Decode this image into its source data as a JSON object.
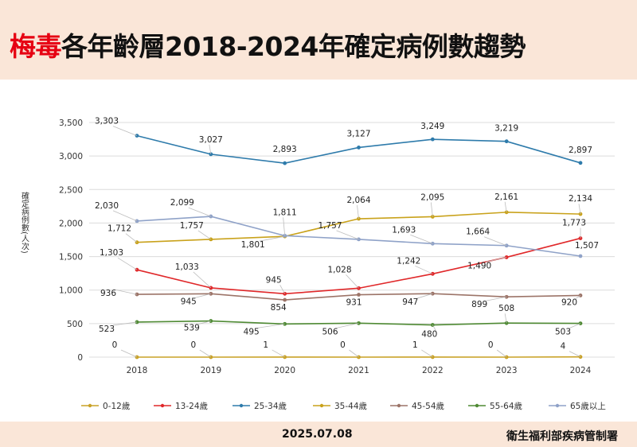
{
  "header": {
    "title_highlight": "梅毒",
    "title_rest": "各年齡層2018-2024年確定病例數趨勢"
  },
  "footer": {
    "date": "2025.07.08",
    "org": "衛生福利部疾病管制署"
  },
  "chart_data": {
    "type": "line",
    "title": "",
    "ylabel": "確定病例數(人次)",
    "xlabel": "",
    "x": [
      "2018",
      "2019",
      "2020",
      "2021",
      "2022",
      "2023",
      "2024"
    ],
    "ylim": [
      0,
      3500
    ],
    "yticks": [
      0,
      500,
      1000,
      1500,
      2000,
      2500,
      3000,
      3500
    ],
    "ytick_labels": [
      "0",
      "500",
      "1,000",
      "1,500",
      "2,000",
      "2,500",
      "3,000",
      "3,500"
    ],
    "grid": "horizontal",
    "legend_position": "bottom",
    "series": [
      {
        "name": "0-12歲",
        "color": "#c9a227",
        "values": [
          0,
          0,
          1,
          0,
          1,
          0,
          4
        ],
        "labels": [
          "0",
          "0",
          "1",
          "0",
          "1",
          "0",
          "4"
        ]
      },
      {
        "name": "13-24歲",
        "color": "#e0282a",
        "values": [
          1303,
          1033,
          945,
          1028,
          1242,
          1490,
          1773
        ],
        "labels": [
          "1,303",
          "1,033",
          "945",
          "1,028",
          "1,242",
          "1,490",
          "1,773"
        ]
      },
      {
        "name": "25-34歲",
        "color": "#2e7bab",
        "values": [
          3303,
          3027,
          2893,
          3127,
          3249,
          3219,
          2897
        ],
        "labels": [
          "3,303",
          "3,027",
          "2,893",
          "3,127",
          "3,249",
          "3,219",
          "2,897"
        ]
      },
      {
        "name": "35-44歲",
        "color": "#c9a21b",
        "values": [
          1712,
          1757,
          1801,
          2064,
          2095,
          2161,
          2134
        ],
        "labels": [
          "1,712",
          "1,757",
          "1,801",
          "2,064",
          "2,095",
          "2,161",
          "2,134"
        ]
      },
      {
        "name": "45-54歲",
        "color": "#9c7468",
        "values": [
          936,
          945,
          854,
          931,
          947,
          899,
          920
        ],
        "labels": [
          "936",
          "945",
          "854",
          "931",
          "947",
          "899",
          "920"
        ]
      },
      {
        "name": "55-64歲",
        "color": "#4f8a34",
        "values": [
          523,
          539,
          495,
          506,
          480,
          508,
          503
        ],
        "labels": [
          "523",
          "539",
          "495",
          "506",
          "480",
          "508",
          "503"
        ]
      },
      {
        "name": "65歲以上",
        "color": "#8fa2c8",
        "values": [
          2030,
          2099,
          1811,
          1757,
          1693,
          1664,
          1507
        ],
        "labels": [
          "2,030",
          "2,099",
          "1,811",
          "1,757",
          "1,693",
          "1,664",
          "1,507"
        ]
      }
    ]
  }
}
